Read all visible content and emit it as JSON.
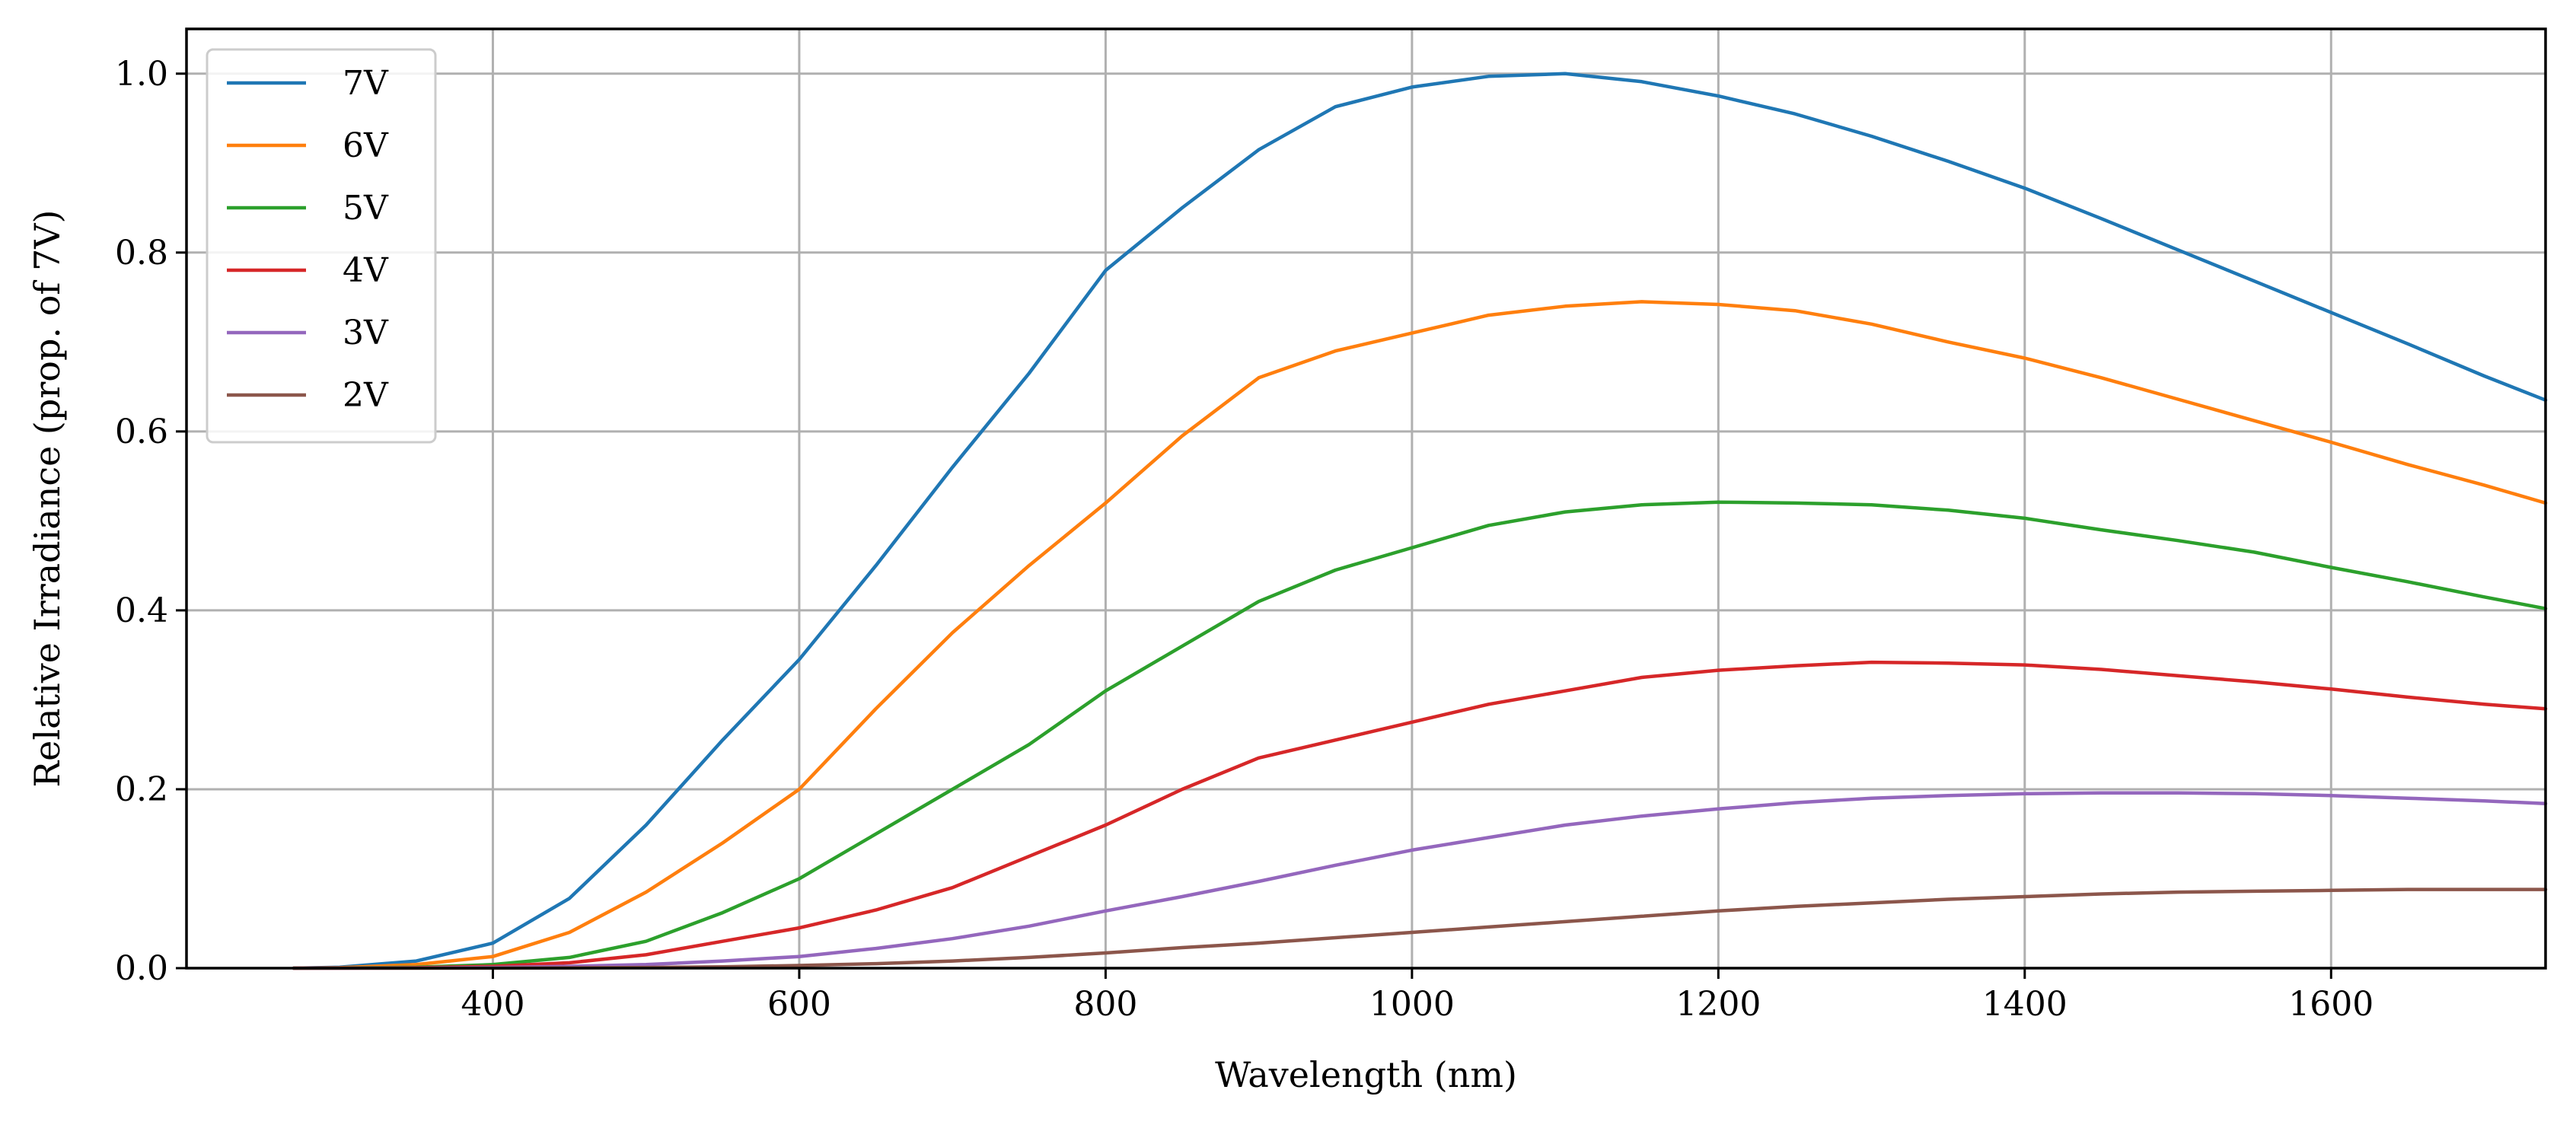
{
  "chart_data": {
    "type": "line",
    "title": "",
    "xlabel": "Wavelength (nm)",
    "ylabel": "Relative Irradiance (prop. of 7V)",
    "xlim": [
      200,
      1740
    ],
    "ylim": [
      0.0,
      1.05
    ],
    "xticks": [
      400,
      600,
      800,
      1000,
      1200,
      1400,
      1600
    ],
    "yticks": [
      0.0,
      0.2,
      0.4,
      0.6,
      0.8,
      1.0
    ],
    "xtick_labels": [
      "400",
      "600",
      "800",
      "1000",
      "1200",
      "1400",
      "1600"
    ],
    "ytick_labels": [
      "0.0",
      "0.2",
      "0.4",
      "0.6",
      "0.8",
      "1.0"
    ],
    "grid": true,
    "legend_position": "top-left",
    "x": [
      270,
      300,
      350,
      400,
      450,
      500,
      550,
      600,
      650,
      700,
      750,
      800,
      850,
      900,
      950,
      1000,
      1050,
      1100,
      1150,
      1200,
      1250,
      1300,
      1350,
      1400,
      1450,
      1500,
      1550,
      1600,
      1650,
      1700,
      1740
    ],
    "series": [
      {
        "name": "7V",
        "color": "#1f77b4",
        "values": [
          0.0,
          0.001,
          0.008,
          0.028,
          0.078,
          0.16,
          0.255,
          0.345,
          0.45,
          0.56,
          0.665,
          0.78,
          0.85,
          0.915,
          0.963,
          0.985,
          0.997,
          1.0,
          0.991,
          0.975,
          0.955,
          0.93,
          0.902,
          0.872,
          0.838,
          0.803,
          0.768,
          0.733,
          0.698,
          0.662,
          0.635
        ]
      },
      {
        "name": "6V",
        "color": "#ff7f0e",
        "values": [
          0.0,
          0.0005,
          0.004,
          0.013,
          0.04,
          0.085,
          0.14,
          0.2,
          0.29,
          0.375,
          0.45,
          0.52,
          0.595,
          0.66,
          0.69,
          0.71,
          0.73,
          0.74,
          0.745,
          0.742,
          0.735,
          0.72,
          0.7,
          0.682,
          0.66,
          0.636,
          0.612,
          0.588,
          0.563,
          0.54,
          0.52
        ]
      },
      {
        "name": "5V",
        "color": "#2ca02c",
        "values": [
          0.0,
          0.0002,
          0.001,
          0.004,
          0.012,
          0.03,
          0.062,
          0.1,
          0.15,
          0.2,
          0.25,
          0.31,
          0.36,
          0.41,
          0.445,
          0.47,
          0.495,
          0.51,
          0.518,
          0.521,
          0.52,
          0.518,
          0.512,
          0.503,
          0.49,
          0.478,
          0.465,
          0.448,
          0.432,
          0.415,
          0.402
        ]
      },
      {
        "name": "4V",
        "color": "#d62728",
        "values": [
          0.0,
          0.0001,
          0.0005,
          0.002,
          0.006,
          0.015,
          0.03,
          0.045,
          0.065,
          0.09,
          0.125,
          0.16,
          0.2,
          0.235,
          0.255,
          0.275,
          0.295,
          0.31,
          0.325,
          0.333,
          0.338,
          0.342,
          0.341,
          0.339,
          0.334,
          0.327,
          0.32,
          0.312,
          0.303,
          0.295,
          0.29
        ]
      },
      {
        "name": "3V",
        "color": "#9467bd",
        "values": [
          0.0,
          0.0,
          0.0002,
          0.0008,
          0.002,
          0.004,
          0.008,
          0.013,
          0.022,
          0.033,
          0.047,
          0.064,
          0.08,
          0.097,
          0.115,
          0.132,
          0.146,
          0.16,
          0.17,
          0.178,
          0.185,
          0.19,
          0.193,
          0.195,
          0.196,
          0.196,
          0.195,
          0.193,
          0.19,
          0.187,
          0.184
        ]
      },
      {
        "name": "2V",
        "color": "#8c564b",
        "values": [
          0.0,
          0.0,
          0.0,
          0.0001,
          0.0003,
          0.0008,
          0.0015,
          0.003,
          0.005,
          0.008,
          0.012,
          0.017,
          0.023,
          0.028,
          0.034,
          0.04,
          0.046,
          0.052,
          0.058,
          0.064,
          0.069,
          0.073,
          0.077,
          0.08,
          0.083,
          0.085,
          0.086,
          0.087,
          0.088,
          0.088,
          0.088
        ]
      }
    ]
  }
}
